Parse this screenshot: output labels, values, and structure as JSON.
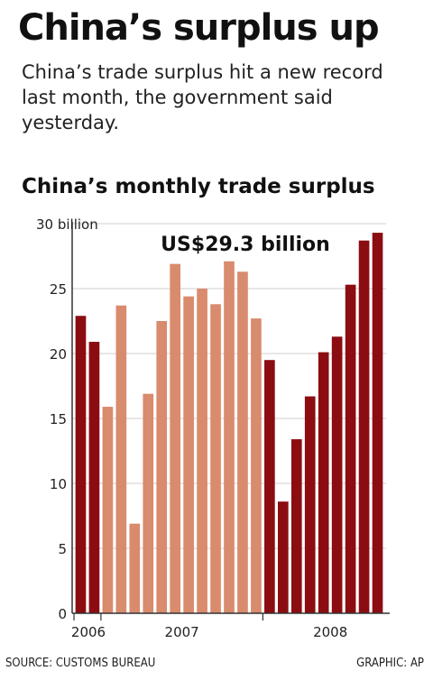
{
  "header": {
    "headline": "China’s surplus up",
    "dek": "China’s trade surplus hit a new record last month, the government said yesterday."
  },
  "footer": {
    "source": "SOURCE: CUSTOMS BUREAU",
    "credit": "GRAPHIC: AP"
  },
  "colors": {
    "dark_red": "#8b0d12",
    "salmon": "#d98b6d",
    "axis": "#333333",
    "grid": "#cfcfcf"
  },
  "chart_data": {
    "type": "bar",
    "title": "China’s monthly trade surplus",
    "ylabel": "",
    "xlabel": "",
    "ylim": [
      0,
      30
    ],
    "yticks": [
      0,
      5,
      10,
      15,
      20,
      25,
      30
    ],
    "ytick_labels": [
      "0",
      "5",
      "10",
      "15",
      "20",
      "25",
      "30 billion"
    ],
    "annotation": "US$29.3 billion",
    "x_labels": [
      "2006",
      "2007",
      "2008"
    ],
    "bars": [
      {
        "year": "2006",
        "value": 22.9
      },
      {
        "year": "2006",
        "value": 20.9
      },
      {
        "year": "2007",
        "value": 15.9
      },
      {
        "year": "2007",
        "value": 23.7
      },
      {
        "year": "2007",
        "value": 6.9
      },
      {
        "year": "2007",
        "value": 16.9
      },
      {
        "year": "2007",
        "value": 22.5
      },
      {
        "year": "2007",
        "value": 26.9
      },
      {
        "year": "2007",
        "value": 24.4
      },
      {
        "year": "2007",
        "value": 25.0
      },
      {
        "year": "2007",
        "value": 23.8
      },
      {
        "year": "2007",
        "value": 27.1
      },
      {
        "year": "2007",
        "value": 26.3
      },
      {
        "year": "2007",
        "value": 22.7
      },
      {
        "year": "2008",
        "value": 19.5
      },
      {
        "year": "2008",
        "value": 8.6
      },
      {
        "year": "2008",
        "value": 13.4
      },
      {
        "year": "2008",
        "value": 16.7
      },
      {
        "year": "2008",
        "value": 20.1
      },
      {
        "year": "2008",
        "value": 21.3
      },
      {
        "year": "2008",
        "value": 25.3
      },
      {
        "year": "2008",
        "value": 28.7
      },
      {
        "year": "2008",
        "value": 29.3
      }
    ]
  }
}
